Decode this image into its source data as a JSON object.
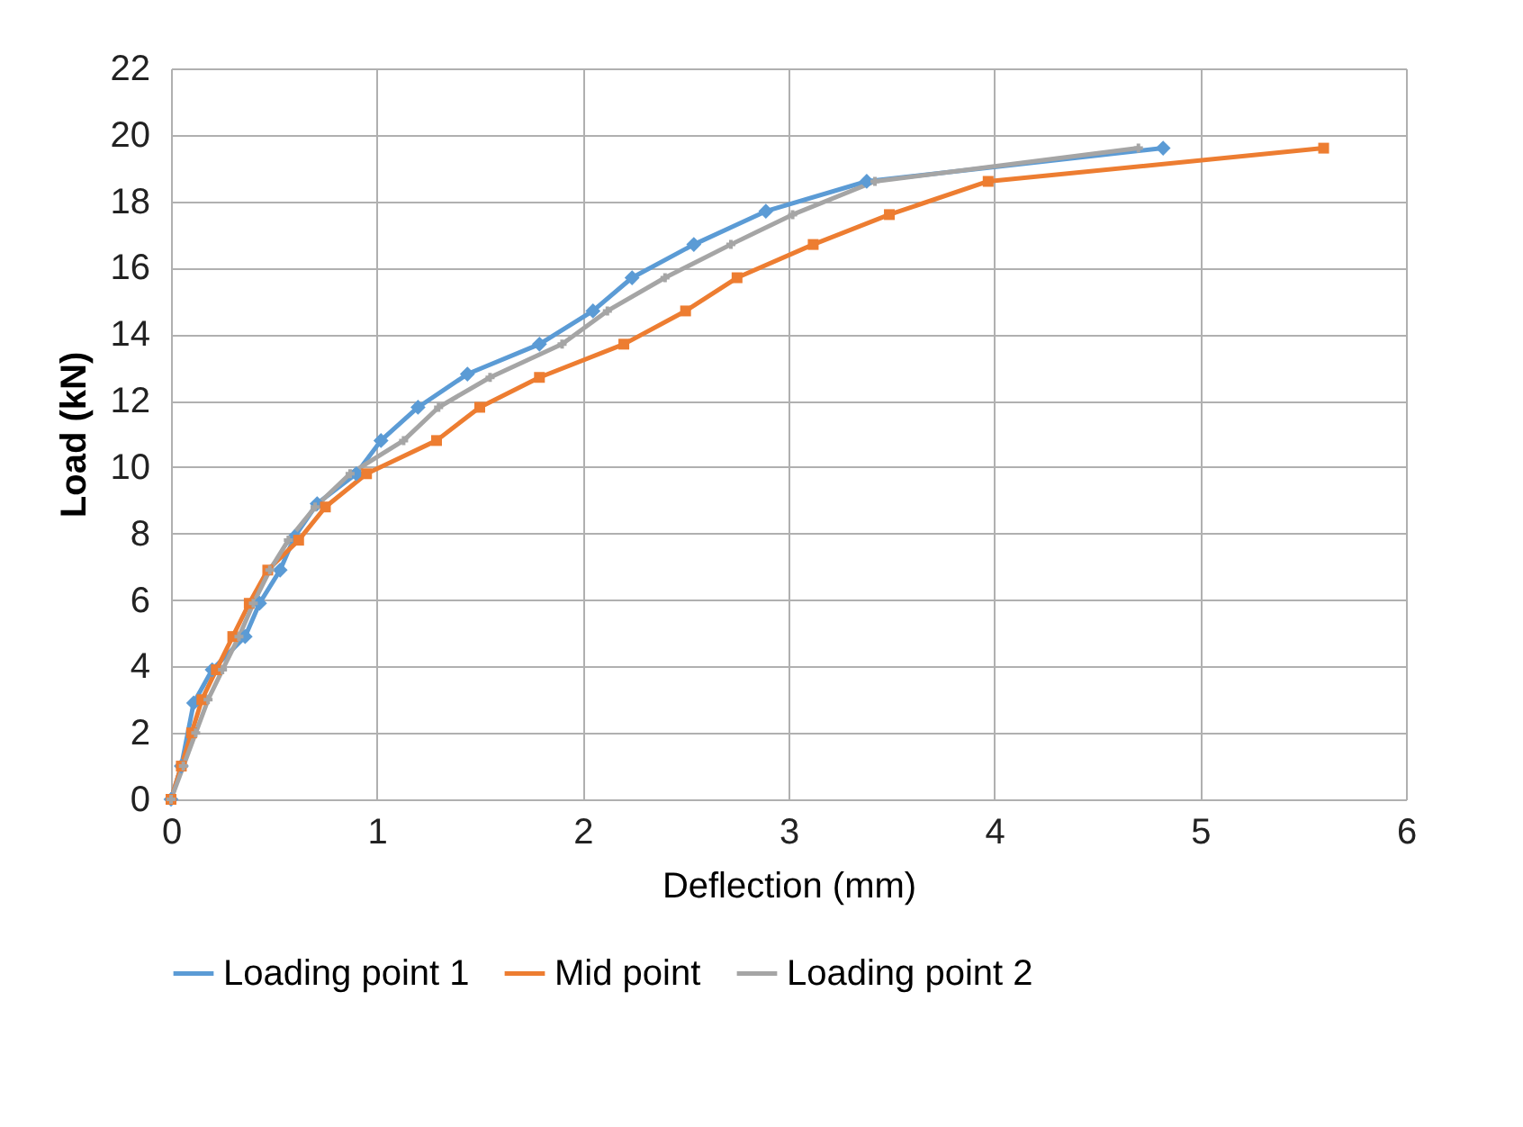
{
  "chart_data": {
    "type": "line",
    "xlabel": "Deflection (mm)",
    "ylabel": "Load (kN)",
    "xlim": [
      0,
      6
    ],
    "xticks": [
      0,
      1,
      2,
      3,
      4,
      5,
      6
    ],
    "ylim": [
      0,
      22
    ],
    "yticks": [
      0,
      2,
      4,
      6,
      8,
      10,
      12,
      14,
      16,
      18,
      20,
      22
    ],
    "grid": true,
    "legend": "bottom",
    "line_style": "solid",
    "series": [
      {
        "name": "Loading point 1",
        "color": "#5b9bd5",
        "marker": "diamond",
        "x": [
          0,
          0.05,
          0.11,
          0.2,
          0.36,
          0.43,
          0.53,
          0.6,
          0.71,
          0.9,
          1.02,
          1.2,
          1.44,
          1.79,
          2.05,
          2.24,
          2.54,
          2.89,
          3.38,
          4.82
        ],
        "values": [
          0,
          1.0,
          2.9,
          3.9,
          4.9,
          5.9,
          6.9,
          7.9,
          8.9,
          9.8,
          10.8,
          11.8,
          12.8,
          13.7,
          14.7,
          15.7,
          16.7,
          17.7,
          18.6,
          19.6
        ]
      },
      {
        "name": "Mid point",
        "color": "#ed7d31",
        "marker": "square",
        "x": [
          0,
          0.05,
          0.1,
          0.15,
          0.22,
          0.3,
          0.38,
          0.47,
          0.62,
          0.75,
          0.95,
          1.29,
          1.5,
          1.79,
          2.2,
          2.5,
          2.75,
          3.12,
          3.49,
          3.97,
          5.6
        ],
        "values": [
          0,
          1.0,
          2.0,
          3.0,
          3.9,
          4.9,
          5.9,
          6.9,
          7.8,
          8.8,
          9.8,
          10.8,
          11.8,
          12.7,
          13.7,
          14.7,
          15.7,
          16.7,
          17.6,
          18.6,
          19.6
        ]
      },
      {
        "name": "Loading point 2",
        "color": "#a5a5a5",
        "marker": "cross",
        "x": [
          0,
          0.06,
          0.12,
          0.18,
          0.25,
          0.33,
          0.4,
          0.48,
          0.57,
          0.7,
          0.87,
          1.13,
          1.3,
          1.55,
          1.9,
          2.12,
          2.4,
          2.72,
          3.02,
          3.42,
          4.7
        ],
        "values": [
          0,
          1.0,
          2.0,
          3.0,
          3.9,
          4.9,
          5.9,
          6.9,
          7.8,
          8.8,
          9.8,
          10.8,
          11.8,
          12.7,
          13.7,
          14.7,
          15.7,
          16.7,
          17.6,
          18.6,
          19.6
        ]
      }
    ]
  }
}
